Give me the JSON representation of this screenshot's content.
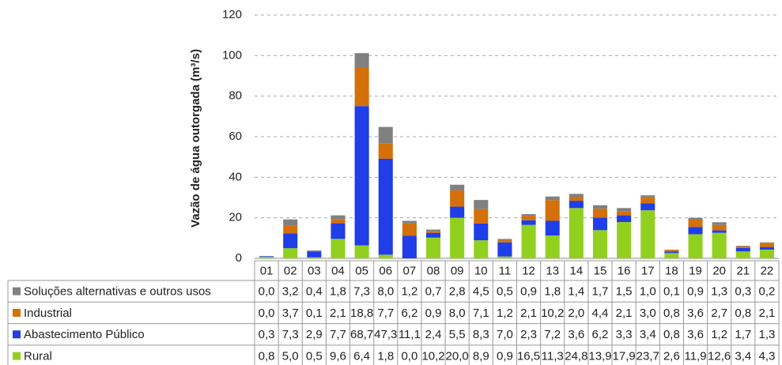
{
  "chart_data": {
    "type": "bar",
    "stacked": true,
    "y_label": "Vazão de água outorgada (m³/s)",
    "categories": [
      "01",
      "02",
      "03",
      "04",
      "05",
      "06",
      "07",
      "08",
      "09",
      "10",
      "11",
      "12",
      "13",
      "14",
      "15",
      "16",
      "17",
      "18",
      "19",
      "20",
      "21",
      "22"
    ],
    "ylim": [
      0,
      120
    ],
    "yticks": [
      0,
      20,
      40,
      60,
      80,
      100,
      120
    ],
    "grid": true,
    "series": [
      {
        "name": "Soluções alternativas e outros usos",
        "color": "#808080",
        "values": [
          0.0,
          3.2,
          0.4,
          1.8,
          7.3,
          8.0,
          1.2,
          0.7,
          2.8,
          4.5,
          0.5,
          0.9,
          1.8,
          1.4,
          1.7,
          1.5,
          1.0,
          0.1,
          0.9,
          1.3,
          0.3,
          0.2
        ],
        "value_labels": [
          "0,0",
          "3,2",
          "0,4",
          "1,8",
          "7,3",
          "8,0",
          "1,2",
          "0,7",
          "2,8",
          "4,5",
          "0,5",
          "0,9",
          "1,8",
          "1,4",
          "1,7",
          "1,5",
          "1,0",
          "0,1",
          "0,9",
          "1,3",
          "0,3",
          "0,2"
        ]
      },
      {
        "name": "Industrial",
        "color": "#d4700a",
        "values": [
          0.0,
          3.7,
          0.1,
          2.1,
          18.8,
          7.7,
          6.2,
          0.9,
          8.0,
          7.1,
          1.2,
          2.1,
          10.2,
          2.0,
          4.4,
          2.1,
          3.0,
          0.8,
          3.6,
          2.7,
          0.8,
          2.1
        ],
        "value_labels": [
          "0,0",
          "3,7",
          "0,1",
          "2,1",
          "18,8",
          "7,7",
          "6,2",
          "0,9",
          "8,0",
          "7,1",
          "1,2",
          "2,1",
          "10,2",
          "2,0",
          "4,4",
          "2,1",
          "3,0",
          "0,8",
          "3,6",
          "2,7",
          "0,8",
          "2,1"
        ]
      },
      {
        "name": "Abastecimento Público",
        "color": "#1f3ee8",
        "values": [
          0.3,
          7.3,
          2.9,
          7.7,
          68.7,
          47.3,
          11.1,
          2.4,
          5.5,
          8.3,
          7.0,
          2.3,
          7.2,
          3.6,
          6.2,
          3.3,
          3.4,
          0.8,
          3.6,
          1.2,
          1.7,
          1.3
        ],
        "value_labels": [
          "0,3",
          "7,3",
          "2,9",
          "7,7",
          "68,7",
          "47,3",
          "11,1",
          "2,4",
          "5,5",
          "8,3",
          "7,0",
          "2,3",
          "7,2",
          "3,6",
          "6,2",
          "3,3",
          "3,4",
          "0,8",
          "3,6",
          "1,2",
          "1,7",
          "1,3"
        ]
      },
      {
        "name": "Rural",
        "color": "#92d020",
        "values": [
          0.8,
          5.0,
          0.5,
          9.6,
          6.4,
          1.8,
          0.0,
          10.2,
          20.0,
          8.9,
          0.9,
          16.5,
          11.3,
          24.8,
          13.9,
          17.9,
          23.7,
          2.6,
          11.9,
          12.6,
          3.4,
          4.3
        ],
        "value_labels": [
          "0,8",
          "5,0",
          "0,5",
          "9,6",
          "6,4",
          "1,8",
          "0,0",
          "10,2",
          "20,0",
          "8,9",
          "0,9",
          "16,5",
          "11,3",
          "24,8",
          "13,9",
          "17,9",
          "23,7",
          "2,6",
          "11,9",
          "12,6",
          "3,4",
          "4,3"
        ]
      }
    ]
  }
}
